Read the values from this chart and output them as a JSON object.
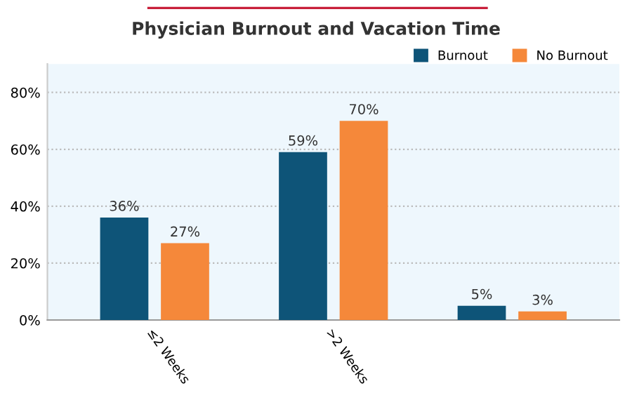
{
  "chart_data": {
    "type": "bar",
    "title": "Physician Burnout and Vacation Time",
    "categories": [
      "≤2 Weeks",
      ">2 Weeks",
      null
    ],
    "series": [
      {
        "name": "Burnout",
        "color": "#0e5478",
        "values": [
          36,
          59,
          5
        ],
        "value_labels": [
          "36%",
          "59%",
          "5%"
        ]
      },
      {
        "name": "No Burnout",
        "color": "#f5883a",
        "values": [
          27,
          70,
          3
        ],
        "value_labels": [
          "27%",
          "70%",
          "3%"
        ]
      }
    ],
    "ylim": [
      0,
      90
    ],
    "yticks": [
      {
        "value": 0,
        "label": "0%"
      },
      {
        "value": 20,
        "label": "20%"
      },
      {
        "value": 40,
        "label": "40%"
      },
      {
        "value": 60,
        "label": "60%"
      },
      {
        "value": 80,
        "label": "80%"
      }
    ],
    "grid": "y",
    "legend": "top right"
  }
}
